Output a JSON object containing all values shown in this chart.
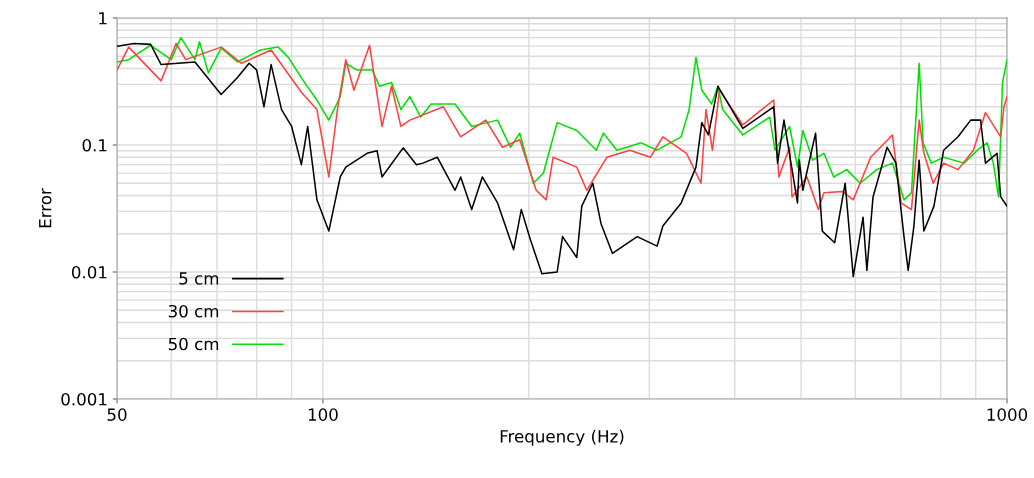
{
  "chart_data": {
    "type": "line",
    "xlabel": "Frequency (Hz)",
    "ylabel": "Error",
    "log": "xy",
    "xlim": [
      50,
      1000
    ],
    "xticks": [
      50,
      100,
      1000
    ],
    "ylim": [
      0.001,
      1
    ],
    "yticks": [
      {
        "value": 0.001,
        "label": "0.001"
      },
      {
        "value": 0.01,
        "label": "0.01"
      },
      {
        "value": 0.1,
        "label": "0.1"
      },
      {
        "value": 1,
        "label": "1"
      }
    ],
    "grid": true,
    "legend": "bottom left",
    "marker": "none",
    "line_style": "solid",
    "series": [
      {
        "name": "5 cm",
        "color": "#000000",
        "x": [
          50,
          53,
          56,
          58,
          65,
          71,
          75,
          78,
          80,
          82,
          84,
          87,
          90,
          93,
          95,
          98,
          102,
          106,
          108,
          116,
          120,
          122,
          131,
          137,
          140,
          147,
          156,
          159,
          165,
          171,
          180,
          190,
          195,
          201,
          209,
          220,
          224,
          235,
          239,
          248,
          255,
          265,
          288,
          308,
          314,
          334,
          351,
          358,
          366,
          378,
          411,
          456,
          462,
          472,
          494,
          497,
          503,
          525,
          537,
          560,
          580,
          596,
          616,
          624,
          637,
          668,
          688,
          707,
          717,
          731,
          744,
          756,
          782,
          808,
          848,
          885,
          915,
          930,
          967,
          979,
          1000
        ],
        "values": [
          0.6,
          0.63,
          0.62,
          0.43,
          0.45,
          0.25,
          0.34,
          0.44,
          0.39,
          0.2,
          0.43,
          0.19,
          0.14,
          0.07,
          0.14,
          0.037,
          0.021,
          0.056,
          0.067,
          0.086,
          0.09,
          0.056,
          0.095,
          0.07,
          0.072,
          0.08,
          0.044,
          0.056,
          0.031,
          0.056,
          0.035,
          0.015,
          0.031,
          0.018,
          0.0097,
          0.01,
          0.019,
          0.013,
          0.033,
          0.05,
          0.024,
          0.014,
          0.019,
          0.016,
          0.023,
          0.035,
          0.067,
          0.15,
          0.12,
          0.29,
          0.135,
          0.2,
          0.072,
          0.157,
          0.035,
          0.076,
          0.044,
          0.124,
          0.021,
          0.017,
          0.05,
          0.0092,
          0.027,
          0.0103,
          0.039,
          0.096,
          0.072,
          0.019,
          0.0103,
          0.023,
          0.076,
          0.021,
          0.033,
          0.091,
          0.116,
          0.157,
          0.157,
          0.072,
          0.086,
          0.039,
          0.033
        ]
      },
      {
        "name": "30 cm",
        "color": "#ff4040",
        "x": [
          50,
          52,
          58,
          61,
          63,
          71,
          76,
          84,
          93,
          98,
          102,
          105,
          108,
          111,
          117,
          122,
          126,
          130,
          134,
          150,
          159,
          173,
          183,
          194,
          205,
          212,
          217,
          235,
          243,
          260,
          281,
          301,
          314,
          340,
          357,
          363,
          371,
          380,
          411,
          456,
          464,
          481,
          485,
          510,
          530,
          540,
          575,
          596,
          632,
          680,
          700,
          725,
          744,
          756,
          780,
          808,
          848,
          893,
          930,
          979,
          990,
          1000
        ],
        "values": [
          0.39,
          0.59,
          0.32,
          0.63,
          0.47,
          0.59,
          0.44,
          0.56,
          0.26,
          0.19,
          0.056,
          0.19,
          0.47,
          0.27,
          0.61,
          0.14,
          0.29,
          0.14,
          0.157,
          0.2,
          0.116,
          0.157,
          0.096,
          0.11,
          0.044,
          0.037,
          0.08,
          0.067,
          0.044,
          0.08,
          0.091,
          0.08,
          0.116,
          0.086,
          0.05,
          0.19,
          0.091,
          0.27,
          0.144,
          0.226,
          0.056,
          0.096,
          0.039,
          0.056,
          0.031,
          0.042,
          0.043,
          0.037,
          0.08,
          0.12,
          0.035,
          0.031,
          0.157,
          0.086,
          0.05,
          0.072,
          0.064,
          0.091,
          0.18,
          0.116,
          0.2,
          0.24
        ]
      },
      {
        "name": "50 cm",
        "color": "#00e000",
        "x": [
          50,
          52,
          56,
          60,
          62,
          65,
          66,
          68,
          71,
          75,
          81,
          86,
          89,
          94,
          98,
          102,
          106,
          108,
          112,
          118,
          121,
          126,
          130,
          134,
          139,
          144,
          156,
          165,
          180,
          188,
          194,
          203,
          210,
          220,
          235,
          251,
          257,
          269,
          292,
          308,
          334,
          343,
          351,
          358,
          370,
          378,
          384,
          411,
          450,
          458,
          481,
          494,
          503,
          520,
          540,
          558,
          583,
          610,
          645,
          680,
          707,
          725,
          744,
          754,
          775,
          808,
          865,
          905,
          935,
          955,
          972,
          985,
          1000
        ],
        "values": [
          0.45,
          0.47,
          0.61,
          0.47,
          0.7,
          0.47,
          0.65,
          0.37,
          0.58,
          0.45,
          0.56,
          0.59,
          0.49,
          0.31,
          0.226,
          0.157,
          0.24,
          0.44,
          0.39,
          0.39,
          0.29,
          0.31,
          0.19,
          0.24,
          0.166,
          0.21,
          0.21,
          0.14,
          0.157,
          0.096,
          0.124,
          0.05,
          0.06,
          0.15,
          0.13,
          0.091,
          0.124,
          0.091,
          0.104,
          0.091,
          0.116,
          0.19,
          0.49,
          0.27,
          0.21,
          0.29,
          0.19,
          0.12,
          0.166,
          0.091,
          0.14,
          0.067,
          0.13,
          0.076,
          0.086,
          0.056,
          0.064,
          0.05,
          0.064,
          0.072,
          0.037,
          0.042,
          0.44,
          0.104,
          0.072,
          0.08,
          0.072,
          0.091,
          0.104,
          0.072,
          0.039,
          0.31,
          0.47
        ]
      }
    ]
  }
}
